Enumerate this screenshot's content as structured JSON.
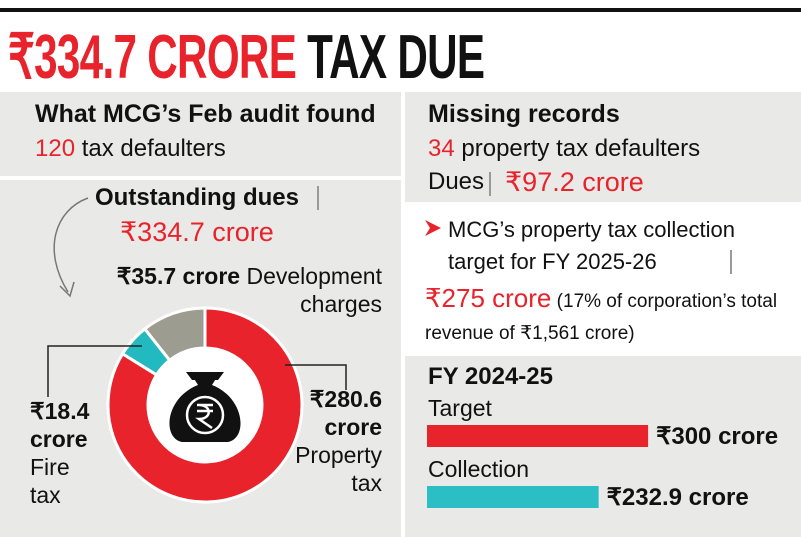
{
  "title": {
    "highlight": "₹334.7 CRORE",
    "rest": "TAX DUE"
  },
  "audit": {
    "heading": "What MCG’s Feb audit found",
    "count": "120",
    "count_text": "tax defaulters"
  },
  "outstanding": {
    "label": "Outstanding dues",
    "amount": "₹334.7 crore"
  },
  "missing": {
    "heading": "Missing records",
    "count": "34",
    "count_text": "property tax defaulters",
    "dues_label": "Dues",
    "dues_amount": "₹97.2 crore"
  },
  "target_note": {
    "text": "MCG’s property tax collection target for FY 2025-26",
    "amount": "₹275 crore",
    "note": "(17% of corporation’s total revenue of ₹1,561 crore)"
  },
  "chart_data": [
    {
      "type": "pie",
      "categories": [
        "Development charges",
        "Fire tax",
        "Property tax"
      ],
      "values": [
        35.7,
        18.4,
        280.6
      ],
      "value_labels": [
        "₹35.7 crore",
        "₹18.4 crore",
        "₹280.6 crore"
      ],
      "colors": [
        "#9c9c90",
        "#23b9c1",
        "#e8232b"
      ]
    },
    {
      "type": "bar",
      "title": "FY 2024-25",
      "categories": [
        "Target",
        "Collection"
      ],
      "values": [
        300,
        232.9
      ],
      "value_labels": [
        "₹300 crore",
        "₹232.9 crore"
      ],
      "colors": [
        "#e8232b",
        "#2bbec4"
      ]
    }
  ]
}
